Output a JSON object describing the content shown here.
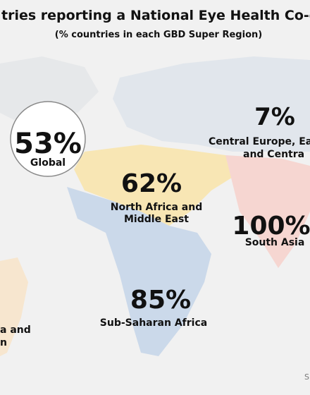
{
  "header": {
    "title": "tries reporting a National Eye Health Co-ordi",
    "subtitle": "(% countries in each GBD Super Region)"
  },
  "regions": [
    {
      "value": "53%",
      "label": [
        "Global"
      ]
    },
    {
      "value": "7%",
      "label": [
        "Central Europe, Eas",
        "and Centra"
      ]
    },
    {
      "value": "62%",
      "label": [
        "North Africa and",
        "Middle East"
      ]
    },
    {
      "value": "100%",
      "label": [
        "South Asia"
      ]
    },
    {
      "value": "85%",
      "label": [
        "Sub-Saharan Africa"
      ]
    },
    {
      "label": [
        "a and",
        "n"
      ]
    }
  ],
  "footer": {
    "source": "S"
  }
}
